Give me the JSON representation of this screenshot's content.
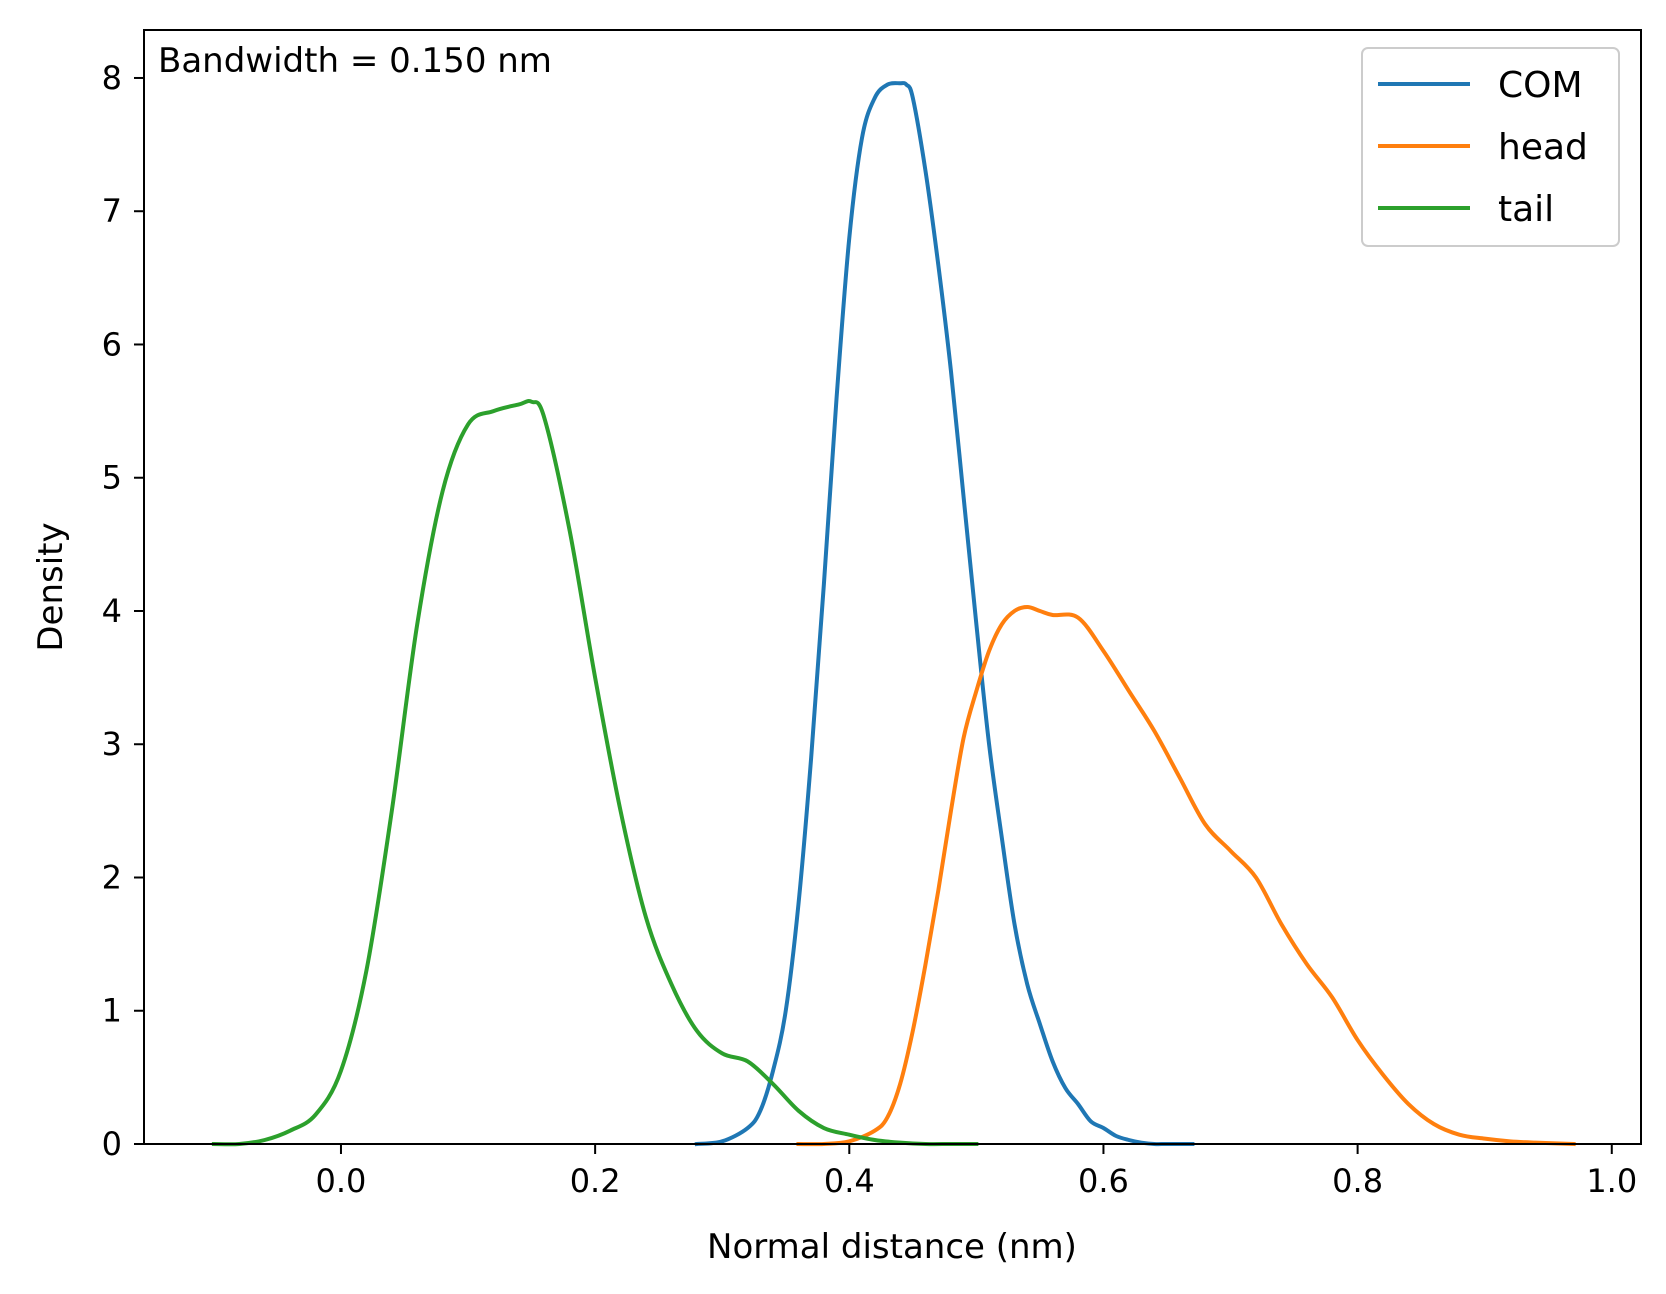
{
  "chart_data": {
    "type": "line",
    "title": "",
    "annotation": "Bandwidth = 0.150 nm",
    "xlabel": "Normal distance (nm)",
    "ylabel": "Density",
    "xlim": [
      -0.155,
      1.023
    ],
    "ylim": [
      0,
      8.36
    ],
    "xticks": [
      0.0,
      0.2,
      0.4,
      0.6,
      0.8,
      1.0
    ],
    "xtick_labels": [
      "0.0",
      "0.2",
      "0.4",
      "0.6",
      "0.8",
      "1.0"
    ],
    "yticks": [
      0,
      1,
      2,
      3,
      4,
      5,
      6,
      7,
      8
    ],
    "ytick_labels": [
      "0",
      "1",
      "2",
      "3",
      "4",
      "5",
      "6",
      "7",
      "8"
    ],
    "grid": false,
    "legend_position": "top-right",
    "series": [
      {
        "name": "COM",
        "color": "#1f77b4",
        "x": [
          0.28,
          0.3,
          0.32,
          0.33,
          0.34,
          0.35,
          0.36,
          0.37,
          0.38,
          0.39,
          0.4,
          0.41,
          0.42,
          0.43,
          0.44,
          0.445,
          0.45,
          0.46,
          0.47,
          0.48,
          0.49,
          0.5,
          0.51,
          0.52,
          0.53,
          0.54,
          0.55,
          0.56,
          0.57,
          0.58,
          0.59,
          0.6,
          0.61,
          0.62,
          0.63,
          0.64,
          0.65,
          0.67
        ],
        "y": [
          0.0,
          0.02,
          0.12,
          0.25,
          0.55,
          1.0,
          1.8,
          2.9,
          4.2,
          5.6,
          6.8,
          7.55,
          7.85,
          7.95,
          7.96,
          7.95,
          7.85,
          7.3,
          6.6,
          5.8,
          4.85,
          3.9,
          3.0,
          2.3,
          1.65,
          1.2,
          0.9,
          0.62,
          0.42,
          0.3,
          0.17,
          0.12,
          0.06,
          0.03,
          0.01,
          0.0,
          0.0,
          0.0
        ]
      },
      {
        "name": "head",
        "color": "#ff7f0e",
        "x": [
          0.36,
          0.38,
          0.4,
          0.42,
          0.43,
          0.44,
          0.45,
          0.46,
          0.47,
          0.48,
          0.49,
          0.5,
          0.51,
          0.52,
          0.53,
          0.54,
          0.55,
          0.56,
          0.58,
          0.6,
          0.62,
          0.64,
          0.66,
          0.68,
          0.7,
          0.72,
          0.74,
          0.76,
          0.78,
          0.8,
          0.82,
          0.84,
          0.86,
          0.88,
          0.9,
          0.92,
          0.94,
          0.97
        ],
        "y": [
          0.0,
          0.0,
          0.02,
          0.1,
          0.2,
          0.45,
          0.85,
          1.35,
          1.9,
          2.5,
          3.05,
          3.4,
          3.7,
          3.9,
          4.0,
          4.03,
          4.0,
          3.97,
          3.95,
          3.7,
          3.4,
          3.1,
          2.75,
          2.4,
          2.2,
          2.0,
          1.65,
          1.35,
          1.1,
          0.78,
          0.52,
          0.3,
          0.15,
          0.07,
          0.04,
          0.02,
          0.01,
          0.0
        ]
      },
      {
        "name": "tail",
        "color": "#2ca02c",
        "x": [
          -0.1,
          -0.08,
          -0.06,
          -0.04,
          -0.02,
          0.0,
          0.02,
          0.04,
          0.06,
          0.08,
          0.1,
          0.12,
          0.14,
          0.15,
          0.16,
          0.18,
          0.2,
          0.22,
          0.24,
          0.26,
          0.28,
          0.3,
          0.32,
          0.34,
          0.36,
          0.38,
          0.4,
          0.42,
          0.44,
          0.46,
          0.48,
          0.5
        ],
        "y": [
          0.0,
          0.0,
          0.03,
          0.1,
          0.22,
          0.55,
          1.3,
          2.5,
          3.9,
          4.9,
          5.4,
          5.5,
          5.55,
          5.57,
          5.45,
          4.6,
          3.5,
          2.5,
          1.7,
          1.2,
          0.85,
          0.68,
          0.62,
          0.45,
          0.25,
          0.12,
          0.07,
          0.03,
          0.01,
          0.0,
          0.0,
          0.0
        ]
      }
    ]
  }
}
